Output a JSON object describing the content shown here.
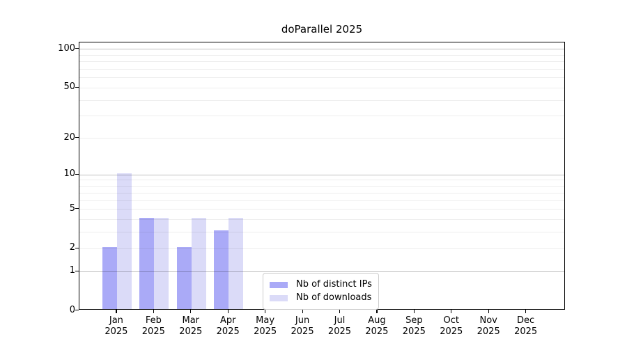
{
  "title": "doParallel 2025",
  "colors": {
    "background": "#ffffff",
    "bar_distinct_ips": "#aaaaf7",
    "bar_downloads": "#dbdbf8",
    "axis_line": "#000000",
    "grid_major": "rgba(0,0,0,0.25)",
    "grid_minor": "rgba(0,0,0,0.07)",
    "legend_border": "#cccccc",
    "text": "#000000"
  },
  "chart_data": {
    "type": "bar",
    "title": "doParallel 2025",
    "categories": [
      "Jan 2025",
      "Feb 2025",
      "Mar 2025",
      "Apr 2025",
      "May 2025",
      "Jun 2025",
      "Jul 2025",
      "Aug 2025",
      "Sep 2025",
      "Oct 2025",
      "Nov 2025",
      "Dec 2025"
    ],
    "series": [
      {
        "name": "Nb of distinct IPs",
        "color": "#aaaaf7",
        "values": [
          2,
          4,
          2,
          3,
          0,
          0,
          0,
          0,
          0,
          0,
          0,
          0
        ]
      },
      {
        "name": "Nb of downloads",
        "color": "#dbdbf8",
        "values": [
          10,
          4,
          4,
          4,
          0,
          0,
          0,
          0,
          0,
          0,
          0,
          0
        ]
      }
    ],
    "xlabel": "",
    "ylabel": "",
    "yscale": "log1p",
    "ylim": [
      0,
      112
    ],
    "ytick_values": [
      0,
      1,
      2,
      5,
      10,
      20,
      50,
      100
    ],
    "ytick_labels": [
      "0",
      "1",
      "2",
      "5",
      "10",
      "20",
      "50",
      "100"
    ],
    "grid_major_values": [
      1,
      10,
      100
    ],
    "grid_minor_values": [
      2,
      3,
      4,
      5,
      6,
      7,
      8,
      9,
      20,
      30,
      40,
      50,
      60,
      70,
      80,
      90
    ],
    "grid": "horizontal",
    "legend_position": "inside-lower-center-left"
  },
  "legend": {
    "items": [
      {
        "label": "Nb of distinct IPs",
        "swatch": "#aaaaf7"
      },
      {
        "label": "Nb of downloads",
        "swatch": "#dbdbf8"
      }
    ]
  }
}
